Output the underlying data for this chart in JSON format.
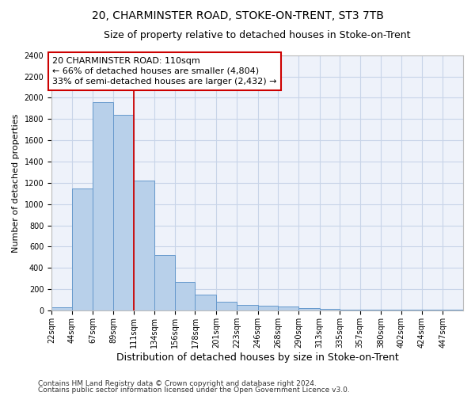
{
  "title": "20, CHARMINSTER ROAD, STOKE-ON-TRENT, ST3 7TB",
  "subtitle": "Size of property relative to detached houses in Stoke-on-Trent",
  "xlabel": "Distribution of detached houses by size in Stoke-on-Trent",
  "ylabel": "Number of detached properties",
  "footnote1": "Contains HM Land Registry data © Crown copyright and database right 2024.",
  "footnote2": "Contains public sector information licensed under the Open Government Licence v3.0.",
  "annotation_line1": "20 CHARMINSTER ROAD: 110sqm",
  "annotation_line2": "← 66% of detached houses are smaller (4,804)",
  "annotation_line3": "33% of semi-detached houses are larger (2,432) →",
  "bar_color": "#b8d0ea",
  "bar_edge_color": "#6699cc",
  "red_line_color": "#cc0000",
  "background_color": "#eef2fa",
  "grid_color": "#c8d4e8",
  "bins": [
    22,
    44,
    67,
    89,
    111,
    134,
    156,
    178,
    201,
    223,
    246,
    268,
    290,
    313,
    335,
    357,
    380,
    402,
    424,
    447,
    469
  ],
  "values": [
    30,
    1150,
    1960,
    1840,
    1220,
    520,
    265,
    150,
    80,
    50,
    45,
    40,
    25,
    18,
    5,
    10,
    5,
    5,
    5,
    5
  ],
  "ylim": [
    0,
    2400
  ],
  "yticks": [
    0,
    200,
    400,
    600,
    800,
    1000,
    1200,
    1400,
    1600,
    1800,
    2000,
    2200,
    2400
  ],
  "title_fontsize": 10,
  "subtitle_fontsize": 9,
  "ylabel_fontsize": 8,
  "xlabel_fontsize": 9,
  "tick_fontsize": 7,
  "annotation_fontsize": 8,
  "footnote_fontsize": 6.5
}
